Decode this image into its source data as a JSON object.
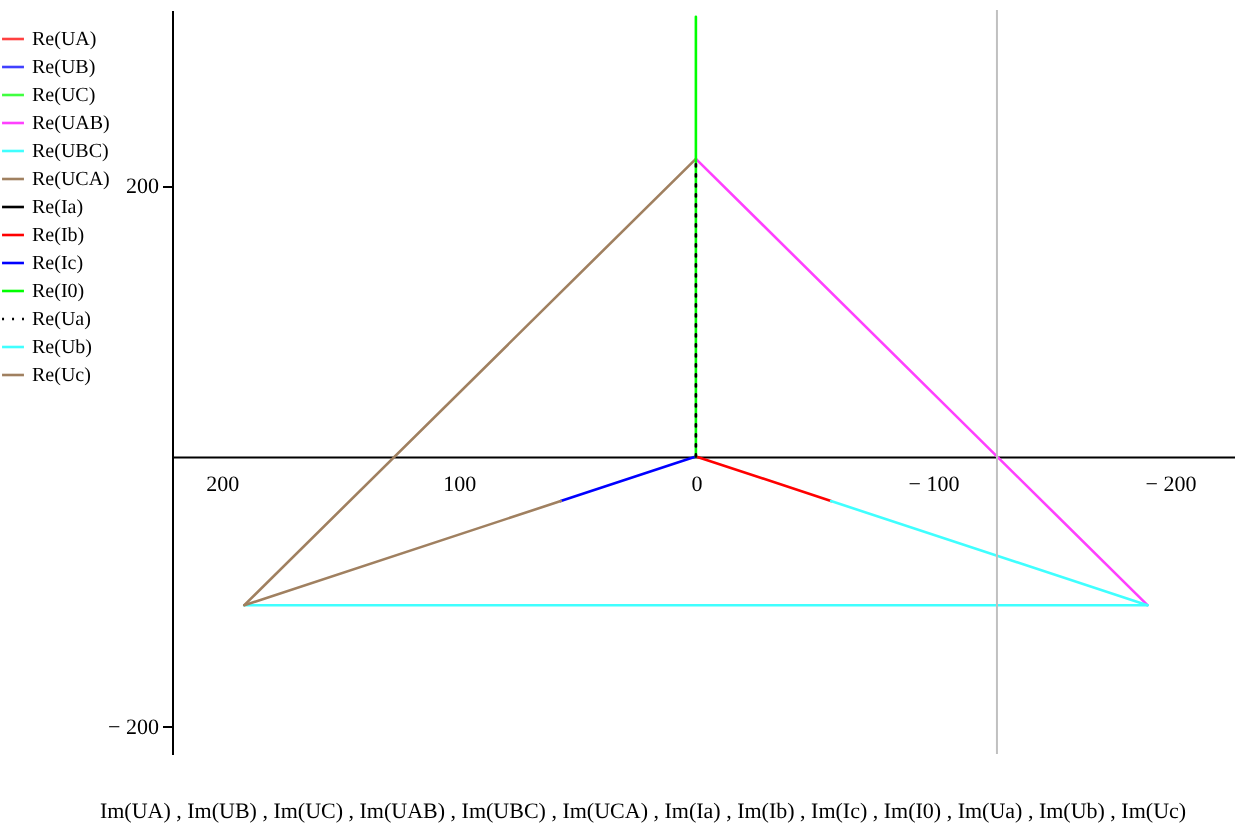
{
  "chart_data": {
    "type": "line",
    "xlabel": "Im(UA) , Im(UB) , Im(UC) , Im(UAB) , Im(UBC) , Im(UCA) , Im(Ia) , Im(Ib) , Im(Ic) , Im(I0) , Im(Ua) , Im(Ub) , Im(Uc)",
    "xlim": [
      221,
      -227
    ],
    "ylim": [
      -220,
      330
    ],
    "xticks": [
      200,
      100,
      0,
      {
        "value": -100,
        "label": "− 100"
      },
      {
        "value": -200,
        "label": "− 200"
      }
    ],
    "yticks": [
      200,
      {
        "value": -200,
        "label": "− 200"
      }
    ],
    "grid": false,
    "legend": "left",
    "marker": "none",
    "ref_lines": [
      {
        "axis": "x",
        "value": -127,
        "label": null,
        "color": "#c0c0c0"
      }
    ],
    "series": [
      {
        "name": "Re(UA)",
        "color": "#ff4040",
        "x": [
          null
        ],
        "values": [
          null
        ]
      },
      {
        "name": "Re(UB)",
        "color": "#4040ff",
        "x": [
          null
        ],
        "values": [
          null
        ]
      },
      {
        "name": "Re(UC)",
        "color": "#40ff40",
        "x": [
          null
        ],
        "values": [
          null
        ]
      },
      {
        "name": "Re(UAB)",
        "color": "#ff40ff",
        "x": [
          0,
          -190.5
        ],
        "values": [
          220,
          -110
        ]
      },
      {
        "name": "Re(UBC)",
        "color": "#40ffff",
        "x": [
          -190.5,
          190.5
        ],
        "values": [
          -110,
          -110
        ]
      },
      {
        "name": "Re(UCA)",
        "color": "#a08060",
        "x": [
          190.5,
          0
        ],
        "values": [
          -110,
          220
        ]
      },
      {
        "name": "Re(Ia)",
        "color": "#000000",
        "x": [
          null
        ],
        "values": [
          null
        ]
      },
      {
        "name": "Re(Ib)",
        "color": "#ff0000",
        "x": [
          0,
          -57
        ],
        "values": [
          0,
          -33
        ]
      },
      {
        "name": "Re(Ic)",
        "color": "#0000ff",
        "x": [
          0,
          57
        ],
        "values": [
          0,
          -33
        ]
      },
      {
        "name": "Re(I0)",
        "color": "#00ff00",
        "x": [
          0,
          0
        ],
        "values": [
          0,
          325
        ]
      },
      {
        "name": "Re(Ua)",
        "color": "#000000",
        "line_style": "dotted",
        "x": [
          0,
          0
        ],
        "values": [
          0,
          220
        ]
      },
      {
        "name": "Re(Ub)",
        "color": "#40ffff",
        "x": [
          -57,
          -190.5
        ],
        "values": [
          -33,
          -110
        ]
      },
      {
        "name": "Re(Uc)",
        "color": "#a08060",
        "x": [
          57,
          190.5
        ],
        "values": [
          -33,
          -110
        ]
      }
    ]
  }
}
